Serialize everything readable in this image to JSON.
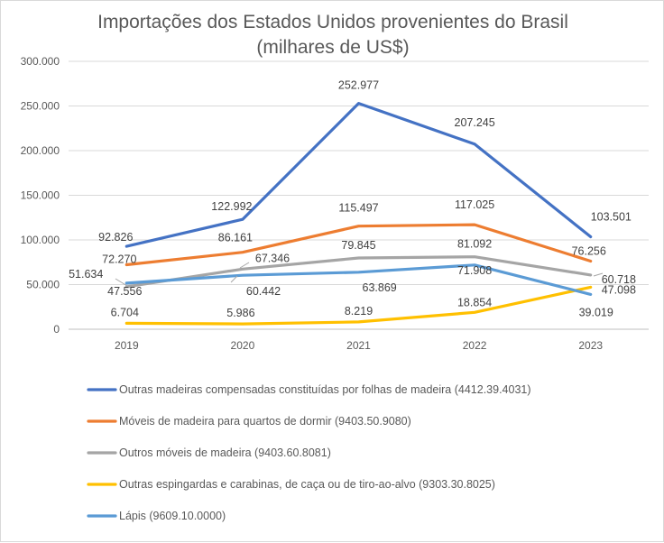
{
  "chart_data": {
    "type": "line",
    "title": "Importações dos Estados Unidos provenientes do Brasil",
    "subtitle": "(milhares de US$)",
    "xlabel": "",
    "ylabel": "",
    "categories": [
      "2019",
      "2020",
      "2021",
      "2022",
      "2023"
    ],
    "ylim": [
      0,
      300000
    ],
    "yticks": [
      0,
      50000,
      100000,
      150000,
      200000,
      250000,
      300000
    ],
    "ytick_labels": [
      "0",
      "50.000",
      "100.000",
      "150.000",
      "200.000",
      "250.000",
      "300.000"
    ],
    "grid": true,
    "legend_position": "bottom",
    "series": [
      {
        "name": "Outras madeiras compensadas constituídas por folhas de madeira (4412.39.4031)",
        "color": "#4472c4",
        "values": [
          92826,
          122992,
          252977,
          207245,
          103501
        ],
        "labels": [
          "92.826",
          "122.992",
          "252.977",
          "207.245",
          "103.501"
        ]
      },
      {
        "name": "Móveis de madeira para quartos de dormir (9403.50.9080)",
        "color": "#ed7d31",
        "values": [
          72270,
          86161,
          115497,
          117025,
          76256
        ],
        "labels": [
          "72.270",
          "86.161",
          "115.497",
          "117.025",
          "76.256"
        ]
      },
      {
        "name": "Outros móveis de madeira (9403.60.8081)",
        "color": "#a5a5a5",
        "values": [
          47556,
          67346,
          79845,
          81092,
          60718
        ],
        "labels": [
          "47.556",
          "67.346",
          "79.845",
          "81.092",
          "60.718"
        ]
      },
      {
        "name": "Outras espingardas e carabinas, de caça ou de tiro-ao-alvo (9303.30.8025)",
        "color": "#ffc000",
        "values": [
          6704,
          5986,
          8219,
          18854,
          47098
        ],
        "labels": [
          "6.704",
          "5.986",
          "8.219",
          "18.854",
          "47.098"
        ]
      },
      {
        "name": "Lápis (9609.10.0000)",
        "color": "#5b9bd5",
        "values": [
          51634,
          60442,
          63869,
          71908,
          39019
        ],
        "labels": [
          "51.634",
          "60.442",
          "63.869",
          "71.908",
          "39.019"
        ]
      }
    ]
  }
}
